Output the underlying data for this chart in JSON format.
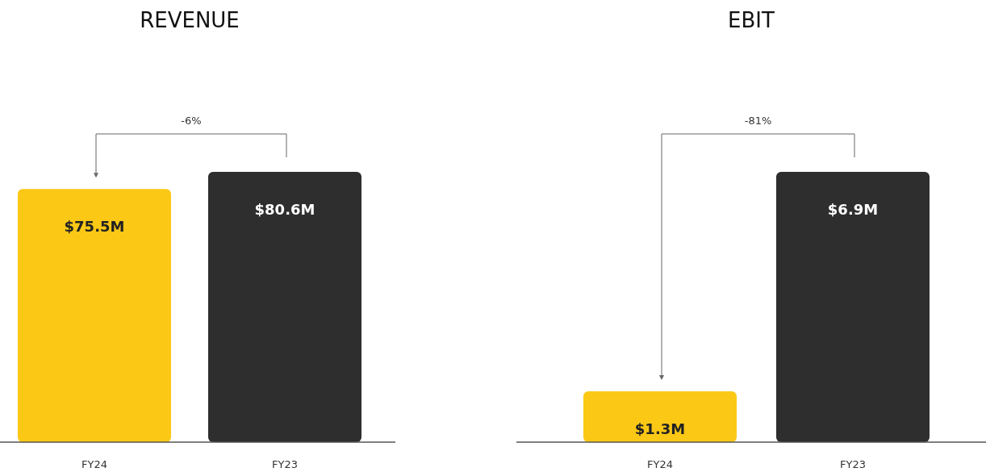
{
  "chart_data": [
    {
      "type": "bar",
      "title": "REVENUE",
      "categories": [
        "FY24",
        "FY23"
      ],
      "values": [
        75.5,
        80.6
      ],
      "colors": [
        "#fbc816",
        "#2e2e2e"
      ],
      "value_labels": [
        "$75.5M",
        "$80.6M"
      ],
      "annotations": [
        "-6%"
      ]
    },
    {
      "type": "bar",
      "title": "EBIT",
      "categories": [
        "FY24",
        "FY23"
      ],
      "values": [
        1.3,
        6.9
      ],
      "colors": [
        "#fbc816",
        "#2e2e2e"
      ],
      "value_labels": [
        "$1.3M",
        "$6.9M"
      ],
      "annotations": [
        "-81%"
      ]
    }
  ]
}
